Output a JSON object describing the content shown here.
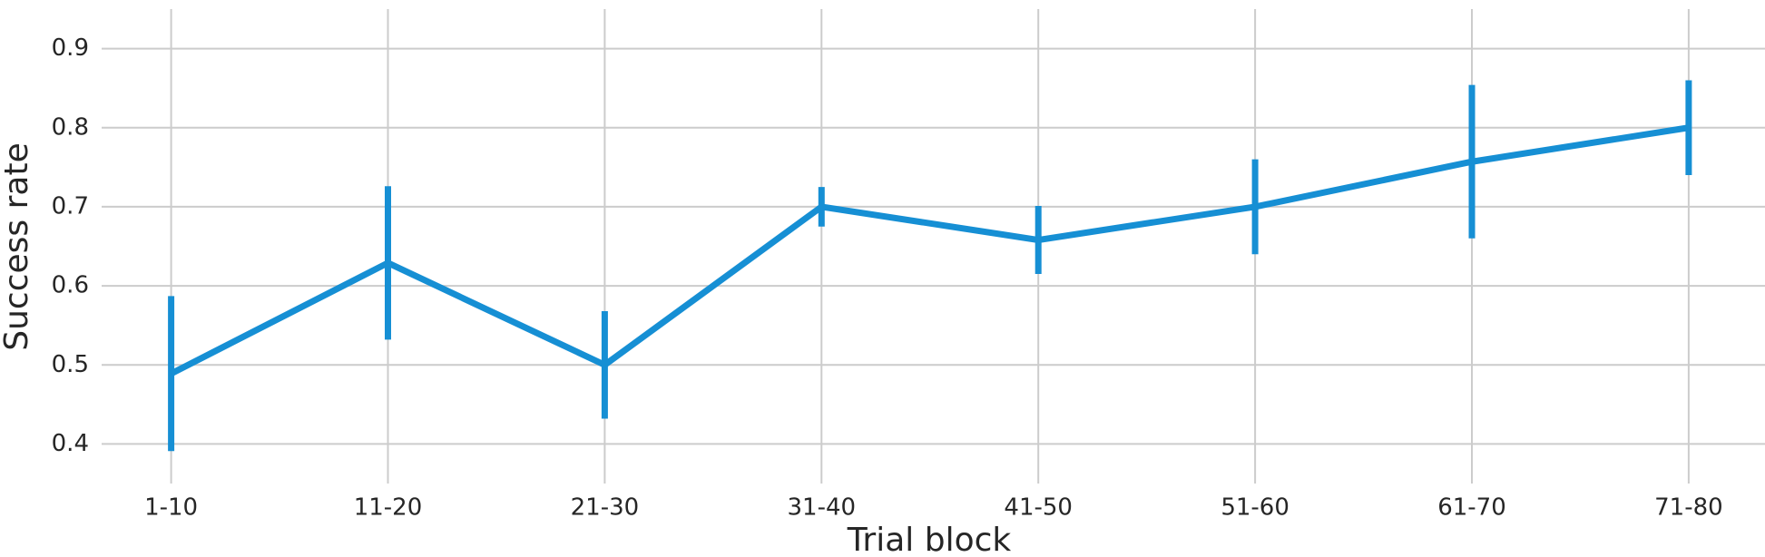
{
  "chart_data": {
    "type": "line",
    "xlabel": "Trial block",
    "ylabel": "Success rate",
    "categories": [
      "1-10",
      "11-20",
      "21-30",
      "31-40",
      "41-50",
      "51-60",
      "61-70",
      "71-80"
    ],
    "values": [
      0.489,
      0.629,
      0.5,
      0.7,
      0.658,
      0.7,
      0.757,
      0.8
    ],
    "errors": [
      0.098,
      0.097,
      0.068,
      0.025,
      0.043,
      0.06,
      0.097,
      0.06
    ],
    "color": "#168fd4",
    "ylim": [
      0.35,
      0.95
    ],
    "yticks": [
      0.4,
      0.5,
      0.6,
      0.7,
      0.8,
      0.9
    ],
    "grid": true
  }
}
